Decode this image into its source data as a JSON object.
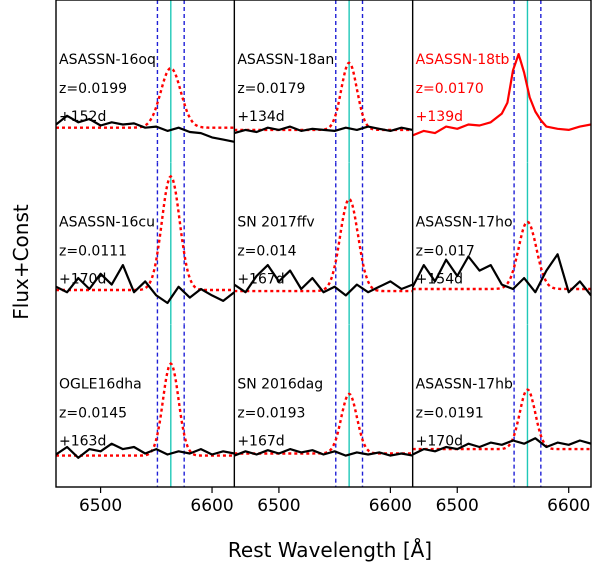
{
  "chart_data": {
    "type": "line",
    "layout": "3x3 grid of spectra panels",
    "xlabel": "Rest Wavelength [Å]",
    "ylabel": "Flux+Const",
    "xlim": [
      6460,
      6620
    ],
    "x_ticks": [
      6500,
      6600
    ],
    "x_tick_labels": [
      "6500",
      "6600"
    ],
    "y_ticks_shown": false,
    "h_alpha_line": {
      "wavelength": 6563,
      "color": "#1fc8b8",
      "style": "solid"
    },
    "velocity_bounds": {
      "wavelengths": [
        6551,
        6575
      ],
      "color": "#1f1fd6",
      "style": "dashed"
    },
    "spectrum_color_default": "#000000",
    "spectrum_color_highlight": "#ff0000",
    "gaussian_fit": {
      "color": "#ff0000",
      "style": "dotted",
      "center": 6563
    },
    "panels": [
      {
        "name": "ASASSN-16oq",
        "redshift": "z=0.0199",
        "phase": "+152d",
        "highlight": false,
        "spectrum": {
          "x": [
            6460,
            6470,
            6480,
            6490,
            6500,
            6510,
            6520,
            6530,
            6540,
            6550,
            6560,
            6570,
            6580,
            6590,
            6600,
            6610,
            6620
          ],
          "y": [
            0.1,
            0.18,
            0.12,
            0.15,
            0.09,
            0.12,
            0.1,
            0.11,
            0.07,
            0.08,
            0.04,
            0.07,
            0.03,
            0.02,
            -0.02,
            -0.04,
            -0.06
          ]
        },
        "fit": {
          "baseline": 0.07,
          "amplitude": 0.55,
          "sigma": 9
        }
      },
      {
        "name": "ASASSN-18an",
        "redshift": "z=0.0179",
        "phase": "+134d",
        "highlight": false,
        "spectrum": {
          "x": [
            6460,
            6470,
            6480,
            6490,
            6500,
            6510,
            6520,
            6530,
            6540,
            6550,
            6560,
            6570,
            6580,
            6590,
            6600,
            6610,
            6620
          ],
          "y": [
            0.02,
            0.05,
            0.03,
            0.07,
            0.05,
            0.08,
            0.04,
            0.06,
            0.05,
            0.04,
            0.07,
            0.05,
            0.08,
            0.06,
            0.04,
            0.07,
            0.05
          ]
        },
        "fit": {
          "baseline": 0.05,
          "amplitude": 0.62,
          "sigma": 7
        }
      },
      {
        "name": "ASASSN-18tb",
        "redshift": "z=0.0170",
        "phase": "+139d",
        "highlight": true,
        "spectrum": {
          "x": [
            6460,
            6470,
            6480,
            6490,
            6500,
            6510,
            6520,
            6530,
            6540,
            6545,
            6550,
            6555,
            6560,
            6565,
            6570,
            6575,
            6580,
            6590,
            6600,
            6610,
            6620
          ],
          "y": [
            0.0,
            0.04,
            0.02,
            0.08,
            0.06,
            0.1,
            0.09,
            0.12,
            0.2,
            0.3,
            0.6,
            0.75,
            0.58,
            0.35,
            0.22,
            0.14,
            0.08,
            0.06,
            0.05,
            0.08,
            0.1
          ]
        },
        "fit": null
      },
      {
        "name": "ASASSN-16cu",
        "redshift": "z=0.0111",
        "phase": "+170d",
        "highlight": false,
        "spectrum": {
          "x": [
            6460,
            6470,
            6480,
            6490,
            6500,
            6510,
            6520,
            6530,
            6540,
            6550,
            6560,
            6570,
            6580,
            6590,
            6600,
            6610,
            6620
          ],
          "y": [
            0.1,
            0.05,
            0.18,
            0.08,
            0.22,
            0.12,
            0.3,
            0.05,
            0.15,
            0.02,
            -0.05,
            0.1,
            0.0,
            0.08,
            0.02,
            -0.03,
            0.05
          ]
        },
        "fit": {
          "baseline": 0.07,
          "amplitude": 1.05,
          "sigma": 8
        }
      },
      {
        "name": "SN 2017ffv",
        "redshift": "z=0.014",
        "phase": "+167d",
        "highlight": false,
        "spectrum": {
          "x": [
            6460,
            6470,
            6480,
            6490,
            6500,
            6510,
            6520,
            6530,
            6540,
            6550,
            6560,
            6570,
            6580,
            6590,
            6600,
            6610,
            6620
          ],
          "y": [
            0.12,
            0.05,
            0.2,
            0.3,
            0.15,
            0.25,
            0.08,
            0.18,
            0.05,
            0.1,
            0.02,
            0.12,
            0.05,
            0.1,
            0.15,
            0.08,
            0.12
          ]
        },
        "fit": {
          "baseline": 0.06,
          "amplitude": 0.85,
          "sigma": 8
        }
      },
      {
        "name": "ASASSN-17ho",
        "redshift": "z=0.017",
        "phase": "+154d",
        "highlight": false,
        "spectrum": {
          "x": [
            6460,
            6470,
            6480,
            6490,
            6500,
            6510,
            6520,
            6530,
            6540,
            6550,
            6560,
            6570,
            6580,
            6590,
            6600,
            6610,
            6620
          ],
          "y": [
            0.1,
            0.3,
            0.15,
            0.35,
            0.2,
            0.38,
            0.25,
            0.3,
            0.12,
            0.08,
            0.18,
            0.05,
            0.25,
            0.4,
            0.05,
            0.15,
            0.02
          ]
        },
        "fit": {
          "baseline": 0.08,
          "amplitude": 0.62,
          "sigma": 8
        }
      },
      {
        "name": "OGLE16dha",
        "redshift": "z=0.0145",
        "phase": "+163d",
        "highlight": false,
        "spectrum": {
          "x": [
            6460,
            6470,
            6480,
            6490,
            6500,
            6510,
            6520,
            6530,
            6540,
            6550,
            6560,
            6570,
            6580,
            6590,
            6600,
            6610,
            6620
          ],
          "y": [
            0.05,
            0.12,
            0.02,
            0.1,
            0.08,
            0.15,
            0.1,
            0.12,
            0.06,
            0.1,
            0.05,
            0.08,
            0.06,
            0.1,
            0.05,
            0.08,
            0.06
          ]
        },
        "fit": {
          "baseline": 0.04,
          "amplitude": 0.85,
          "sigma": 7
        }
      },
      {
        "name": "SN 2016dag",
        "redshift": "z=0.0193",
        "phase": "+167d",
        "highlight": false,
        "spectrum": {
          "x": [
            6460,
            6470,
            6480,
            6490,
            6500,
            6510,
            6520,
            6530,
            6540,
            6550,
            6560,
            6570,
            6580,
            6590,
            6600,
            6610,
            6620
          ],
          "y": [
            0.04,
            0.08,
            0.05,
            0.09,
            0.06,
            0.1,
            0.07,
            0.09,
            0.05,
            0.08,
            0.04,
            0.07,
            0.05,
            0.07,
            0.04,
            0.06,
            0.04
          ]
        },
        "fit": {
          "baseline": 0.06,
          "amplitude": 0.55,
          "sigma": 7
        }
      },
      {
        "name": "ASASSN-17hb",
        "redshift": "z=0.0191",
        "phase": "+170d",
        "highlight": false,
        "spectrum": {
          "x": [
            6460,
            6470,
            6480,
            6490,
            6500,
            6510,
            6520,
            6530,
            6540,
            6550,
            6560,
            6570,
            6580,
            6590,
            6600,
            6610,
            6620
          ],
          "y": [
            0.05,
            0.1,
            0.08,
            0.12,
            0.1,
            0.15,
            0.12,
            0.16,
            0.14,
            0.18,
            0.15,
            0.2,
            0.12,
            0.16,
            0.14,
            0.18,
            0.15
          ]
        },
        "fit": {
          "baseline": 0.1,
          "amplitude": 0.55,
          "sigma": 7
        }
      }
    ]
  }
}
